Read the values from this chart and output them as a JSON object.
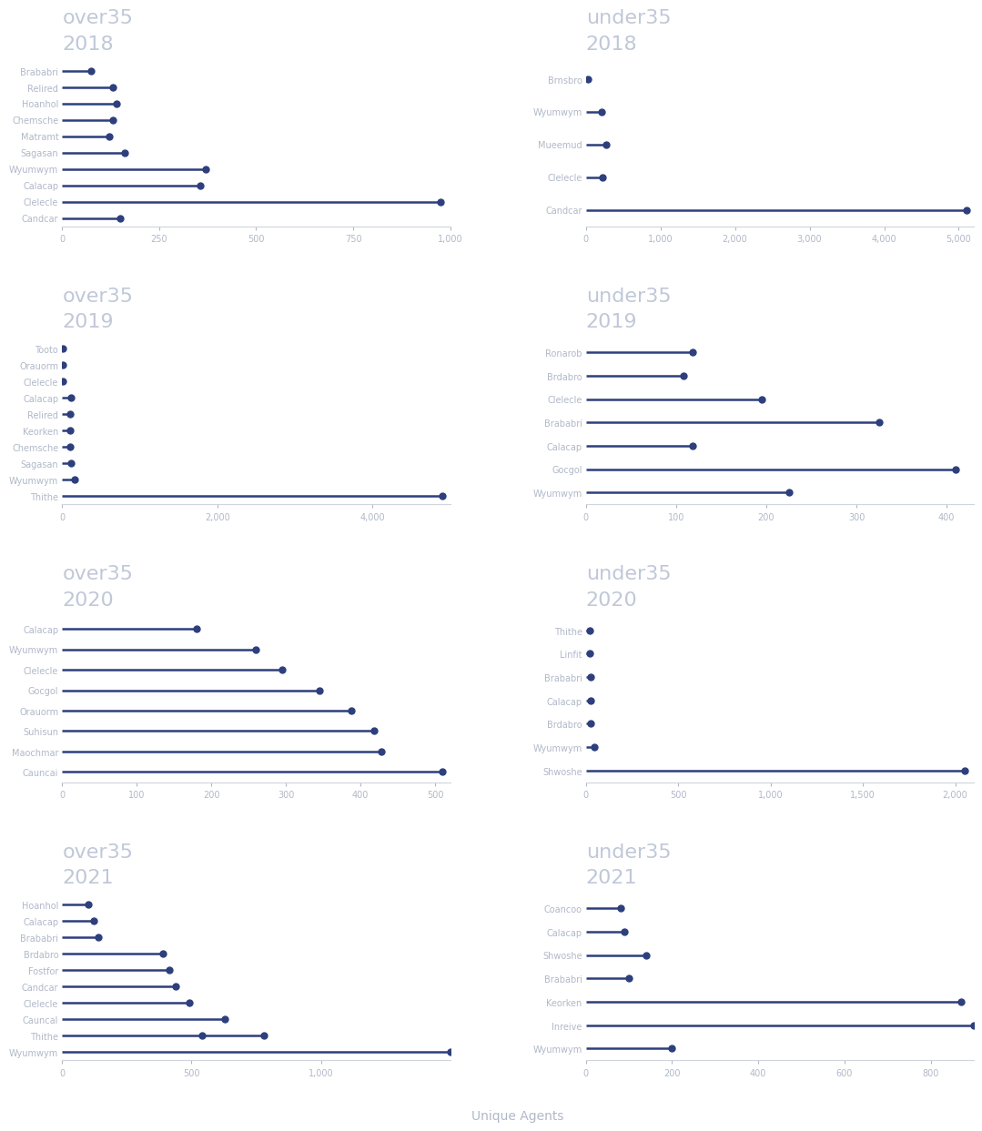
{
  "panels": [
    {
      "age_group": "over35",
      "year": "2018",
      "categories": [
        "Brababri",
        "Relired",
        "Hoanhol",
        "Chemsche",
        "Matramt",
        "Sagasan",
        "Wyumwym",
        "Calacap",
        "Clelecle",
        "Candcar"
      ],
      "values": [
        75,
        130,
        140,
        130,
        120,
        160,
        370,
        355,
        975,
        150
      ],
      "medians": [
        null,
        null,
        null,
        null,
        null,
        null,
        null,
        null,
        null,
        null
      ],
      "xlim": [
        0,
        1000
      ],
      "xticks": [
        0,
        250,
        500,
        750,
        1000
      ]
    },
    {
      "age_group": "under35",
      "year": "2018",
      "categories": [
        "Brnsbro",
        "Wyumwym",
        "Mueemud",
        "Clelecle",
        "Candcar"
      ],
      "values": [
        28,
        210,
        270,
        220,
        5100
      ],
      "medians": [
        null,
        null,
        null,
        null,
        null
      ],
      "xlim": [
        0,
        5200
      ],
      "xticks": [
        0,
        1000,
        2000,
        3000,
        4000,
        5000
      ]
    },
    {
      "age_group": "over35",
      "year": "2019",
      "categories": [
        "Tooto",
        "Orauorm",
        "Clelecle",
        "Calacap",
        "Relired",
        "Keorken",
        "Chemsche",
        "Sagasan",
        "Wyumwym",
        "Thithe"
      ],
      "values": [
        12,
        12,
        12,
        115,
        95,
        100,
        105,
        108,
        165,
        4900
      ],
      "medians": [
        null,
        null,
        null,
        null,
        null,
        null,
        null,
        null,
        null,
        null
      ],
      "xlim": [
        0,
        5000
      ],
      "xticks": [
        0,
        2000,
        4000
      ]
    },
    {
      "age_group": "under35",
      "year": "2019",
      "categories": [
        "Ronarob",
        "Brdabro",
        "Clelecle",
        "Brababri",
        "Calacap",
        "Gocgol",
        "Wyumwym"
      ],
      "values": [
        118,
        108,
        195,
        325,
        118,
        410,
        225
      ],
      "medians": [
        null,
        null,
        null,
        null,
        null,
        null,
        null
      ],
      "xlim": [
        0,
        430
      ],
      "xticks": [
        0,
        100,
        200,
        300,
        400
      ]
    },
    {
      "age_group": "over35",
      "year": "2020",
      "categories": [
        "Calacap",
        "Wyumwym",
        "Clelecle",
        "Gocgol",
        "Orauorm",
        "Suhisun",
        "Maochmar",
        "Cauncai"
      ],
      "values": [
        180,
        260,
        295,
        345,
        388,
        418,
        428,
        510
      ],
      "medians": [
        null,
        null,
        null,
        null,
        null,
        null,
        null,
        null
      ],
      "xlim": [
        0,
        520
      ],
      "xticks": [
        0,
        100,
        200,
        300,
        400,
        500
      ]
    },
    {
      "age_group": "under35",
      "year": "2020",
      "categories": [
        "Thithe",
        "Linfit",
        "Brababri",
        "Calacap",
        "Brdabro",
        "Wyumwym",
        "Shwoshe"
      ],
      "values": [
        22,
        22,
        28,
        28,
        28,
        48,
        2050
      ],
      "medians": [
        null,
        null,
        null,
        null,
        null,
        null,
        null
      ],
      "xlim": [
        0,
        2100
      ],
      "xticks": [
        0,
        500,
        1000,
        1500,
        2000
      ]
    },
    {
      "age_group": "over35",
      "year": "2021",
      "categories": [
        "Hoanhol",
        "Calacap",
        "Brababri",
        "Brdabro",
        "Fostfor",
        "Candcar",
        "Clelecle",
        "Cauncal",
        "Thithe",
        "Wyumwym"
      ],
      "values": [
        100,
        120,
        140,
        390,
        415,
        440,
        490,
        630,
        780,
        1500
      ],
      "medians": [
        null,
        null,
        null,
        null,
        null,
        null,
        null,
        null,
        540,
        null
      ],
      "xlim": [
        0,
        1500
      ],
      "xticks": [
        0,
        500,
        1000
      ]
    },
    {
      "age_group": "under35",
      "year": "2021",
      "categories": [
        "Coancoo",
        "Calacap",
        "Shwoshe",
        "Brababri",
        "Keorken",
        "Inreive",
        "Wyumwym"
      ],
      "values": [
        80,
        90,
        140,
        100,
        870,
        900,
        200
      ],
      "medians": [
        null,
        null,
        null,
        null,
        null,
        null,
        null
      ],
      "xlim": [
        0,
        900
      ],
      "xticks": [
        0,
        200,
        400,
        600,
        800
      ]
    }
  ],
  "dot_color": "#2d3f7c",
  "line_color": "#2d3f7c",
  "dot_size": 5,
  "line_width": 1.8,
  "title_color": "#c0c8d8",
  "tick_color": "#b0b8c8",
  "axis_color": "#d0d4dc",
  "xlabel": "Unique Agents",
  "background_color": "#ffffff",
  "title_fontsize": 16,
  "year_fontsize": 16,
  "tick_fontsize": 7,
  "xlabel_fontsize": 10
}
